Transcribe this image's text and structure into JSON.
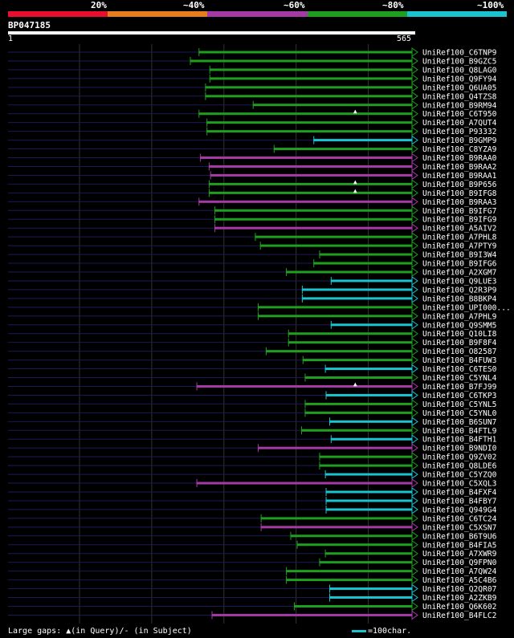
{
  "legend": {
    "labels": [
      "20%",
      "~40%",
      "~60%",
      "~80%",
      "~100%"
    ],
    "colors": [
      "#e8102e",
      "#e87d1e",
      "#a43aa6",
      "#1f9f1f",
      "#19c3cf"
    ]
  },
  "query": {
    "id": "BP047185",
    "start": "1",
    "end": "565",
    "length": 565
  },
  "footer": {
    "gaps_text": "Large gaps: ▲(in Query)/- (in Subject)",
    "scale_text": "=100char."
  },
  "chart_data": {
    "type": "alignment",
    "hits": [
      {
        "name": "UniRef100_C6TNP9",
        "start": 265,
        "color": "green"
      },
      {
        "name": "UniRef100_B9GZC5",
        "start": 253,
        "color": "green"
      },
      {
        "name": "UniRef100_Q8LAG0",
        "start": 280,
        "color": "green"
      },
      {
        "name": "UniRef100_Q9FY94",
        "start": 280,
        "color": "green"
      },
      {
        "name": "UniRef100_Q6UA05",
        "start": 274,
        "color": "green"
      },
      {
        "name": "UniRef100_Q4TZS8",
        "start": 274,
        "color": "green"
      },
      {
        "name": "UniRef100_B9RM94",
        "start": 340,
        "color": "green"
      },
      {
        "name": "UniRef100_C6T950",
        "start": 265,
        "color": "green",
        "gap": "▲"
      },
      {
        "name": "UniRef100_A7QUT4",
        "start": 276,
        "color": "green"
      },
      {
        "name": "UniRef100_P93332",
        "start": 276,
        "color": "green"
      },
      {
        "name": "UniRef100_B9GMP9",
        "start": 424,
        "color": "cyan"
      },
      {
        "name": "UniRef100_C8YZA9",
        "start": 369,
        "color": "green"
      },
      {
        "name": "UniRef100_B9RAA0",
        "start": 267,
        "color": "purple"
      },
      {
        "name": "UniRef100_B9RAA2",
        "start": 279,
        "color": "purple"
      },
      {
        "name": "UniRef100_B9RAA1",
        "start": 281,
        "color": "purple"
      },
      {
        "name": "UniRef100_B9P656",
        "start": 279,
        "color": "green",
        "gap": "▲"
      },
      {
        "name": "UniRef100_B9IFG8",
        "start": 279,
        "color": "green",
        "gap": "▲"
      },
      {
        "name": "UniRef100_B9RAA3",
        "start": 265,
        "color": "purple"
      },
      {
        "name": "UniRef100_B9IFG7",
        "start": 287,
        "color": "green"
      },
      {
        "name": "UniRef100_B9IFG9",
        "start": 287,
        "color": "green"
      },
      {
        "name": "UniRef100_A5AIV2",
        "start": 287,
        "color": "purple"
      },
      {
        "name": "UniRef100_A7PHL8",
        "start": 343,
        "color": "green"
      },
      {
        "name": "UniRef100_A7PTY9",
        "start": 350,
        "color": "green"
      },
      {
        "name": "UniRef100_B9I3W4",
        "start": 432,
        "color": "green"
      },
      {
        "name": "UniRef100_B9IFG6",
        "start": 424,
        "color": "green"
      },
      {
        "name": "UniRef100_A2XGM7",
        "start": 386,
        "color": "green"
      },
      {
        "name": "UniRef100_Q9LUE3",
        "start": 448,
        "color": "cyan"
      },
      {
        "name": "UniRef100_Q2R3P9",
        "start": 408,
        "color": "cyan"
      },
      {
        "name": "UniRef100_B8BKP4",
        "start": 408,
        "color": "cyan"
      },
      {
        "name": "UniRef100_UPI000...",
        "start": 347,
        "color": "green"
      },
      {
        "name": "UniRef100_A7PHL9",
        "start": 347,
        "color": "green"
      },
      {
        "name": "UniRef100_Q9SMM5",
        "start": 448,
        "color": "cyan"
      },
      {
        "name": "UniRef100_Q10LI8",
        "start": 389,
        "color": "green"
      },
      {
        "name": "UniRef100_B9F8F4",
        "start": 389,
        "color": "green"
      },
      {
        "name": "UniRef100_O82587",
        "start": 358,
        "color": "green"
      },
      {
        "name": "UniRef100_B4FUW3",
        "start": 409,
        "color": "green"
      },
      {
        "name": "UniRef100_C6TES0",
        "start": 440,
        "color": "cyan"
      },
      {
        "name": "UniRef100_C5YNL4",
        "start": 412,
        "color": "green"
      },
      {
        "name": "UniRef100_B7FJ99",
        "start": 262,
        "color": "purple",
        "gap": "▲"
      },
      {
        "name": "UniRef100_C6TKP3",
        "start": 441,
        "color": "cyan"
      },
      {
        "name": "UniRef100_C5YNL5",
        "start": 412,
        "color": "green"
      },
      {
        "name": "UniRef100_C5YNL0",
        "start": 412,
        "color": "green"
      },
      {
        "name": "UniRef100_B6SUN7",
        "start": 446,
        "color": "cyan"
      },
      {
        "name": "UniRef100_B4FTL9",
        "start": 407,
        "color": "green"
      },
      {
        "name": "UniRef100_B4FTH1",
        "start": 448,
        "color": "cyan"
      },
      {
        "name": "UniRef100_B9NDI0",
        "start": 347,
        "color": "purple"
      },
      {
        "name": "UniRef100_Q9ZV02",
        "start": 432,
        "color": "green"
      },
      {
        "name": "UniRef100_Q8LDE6",
        "start": 432,
        "color": "green"
      },
      {
        "name": "UniRef100_C5YZQ0",
        "start": 440,
        "color": "cyan"
      },
      {
        "name": "UniRef100_C5XQL3",
        "start": 262,
        "color": "purple"
      },
      {
        "name": "UniRef100_B4FXF4",
        "start": 441,
        "color": "cyan"
      },
      {
        "name": "UniRef100_B4FBY7",
        "start": 441,
        "color": "cyan"
      },
      {
        "name": "UniRef100_Q949G4",
        "start": 441,
        "color": "cyan"
      },
      {
        "name": "UniRef100_C6TC24",
        "start": 351,
        "color": "green"
      },
      {
        "name": "UniRef100_C5XSN7",
        "start": 351,
        "color": "purple"
      },
      {
        "name": "UniRef100_B6T9U6",
        "start": 392,
        "color": "green"
      },
      {
        "name": "UniRef100_B4FIA5",
        "start": 401,
        "color": "green"
      },
      {
        "name": "UniRef100_A7XWR9",
        "start": 440,
        "color": "green"
      },
      {
        "name": "UniRef100_Q9FPN0",
        "start": 432,
        "color": "green"
      },
      {
        "name": "UniRef100_A7QW24",
        "start": 386,
        "color": "green"
      },
      {
        "name": "UniRef100_A5C4B6",
        "start": 386,
        "color": "green"
      },
      {
        "name": "UniRef100_Q2QR07",
        "start": 446,
        "color": "cyan"
      },
      {
        "name": "UniRef100_A2ZKB9",
        "start": 446,
        "color": "cyan"
      },
      {
        "name": "UniRef100_Q6K602",
        "start": 397,
        "color": "green"
      },
      {
        "name": "UniRef100_B4FLC2",
        "start": 283,
        "color": "purple"
      }
    ]
  }
}
